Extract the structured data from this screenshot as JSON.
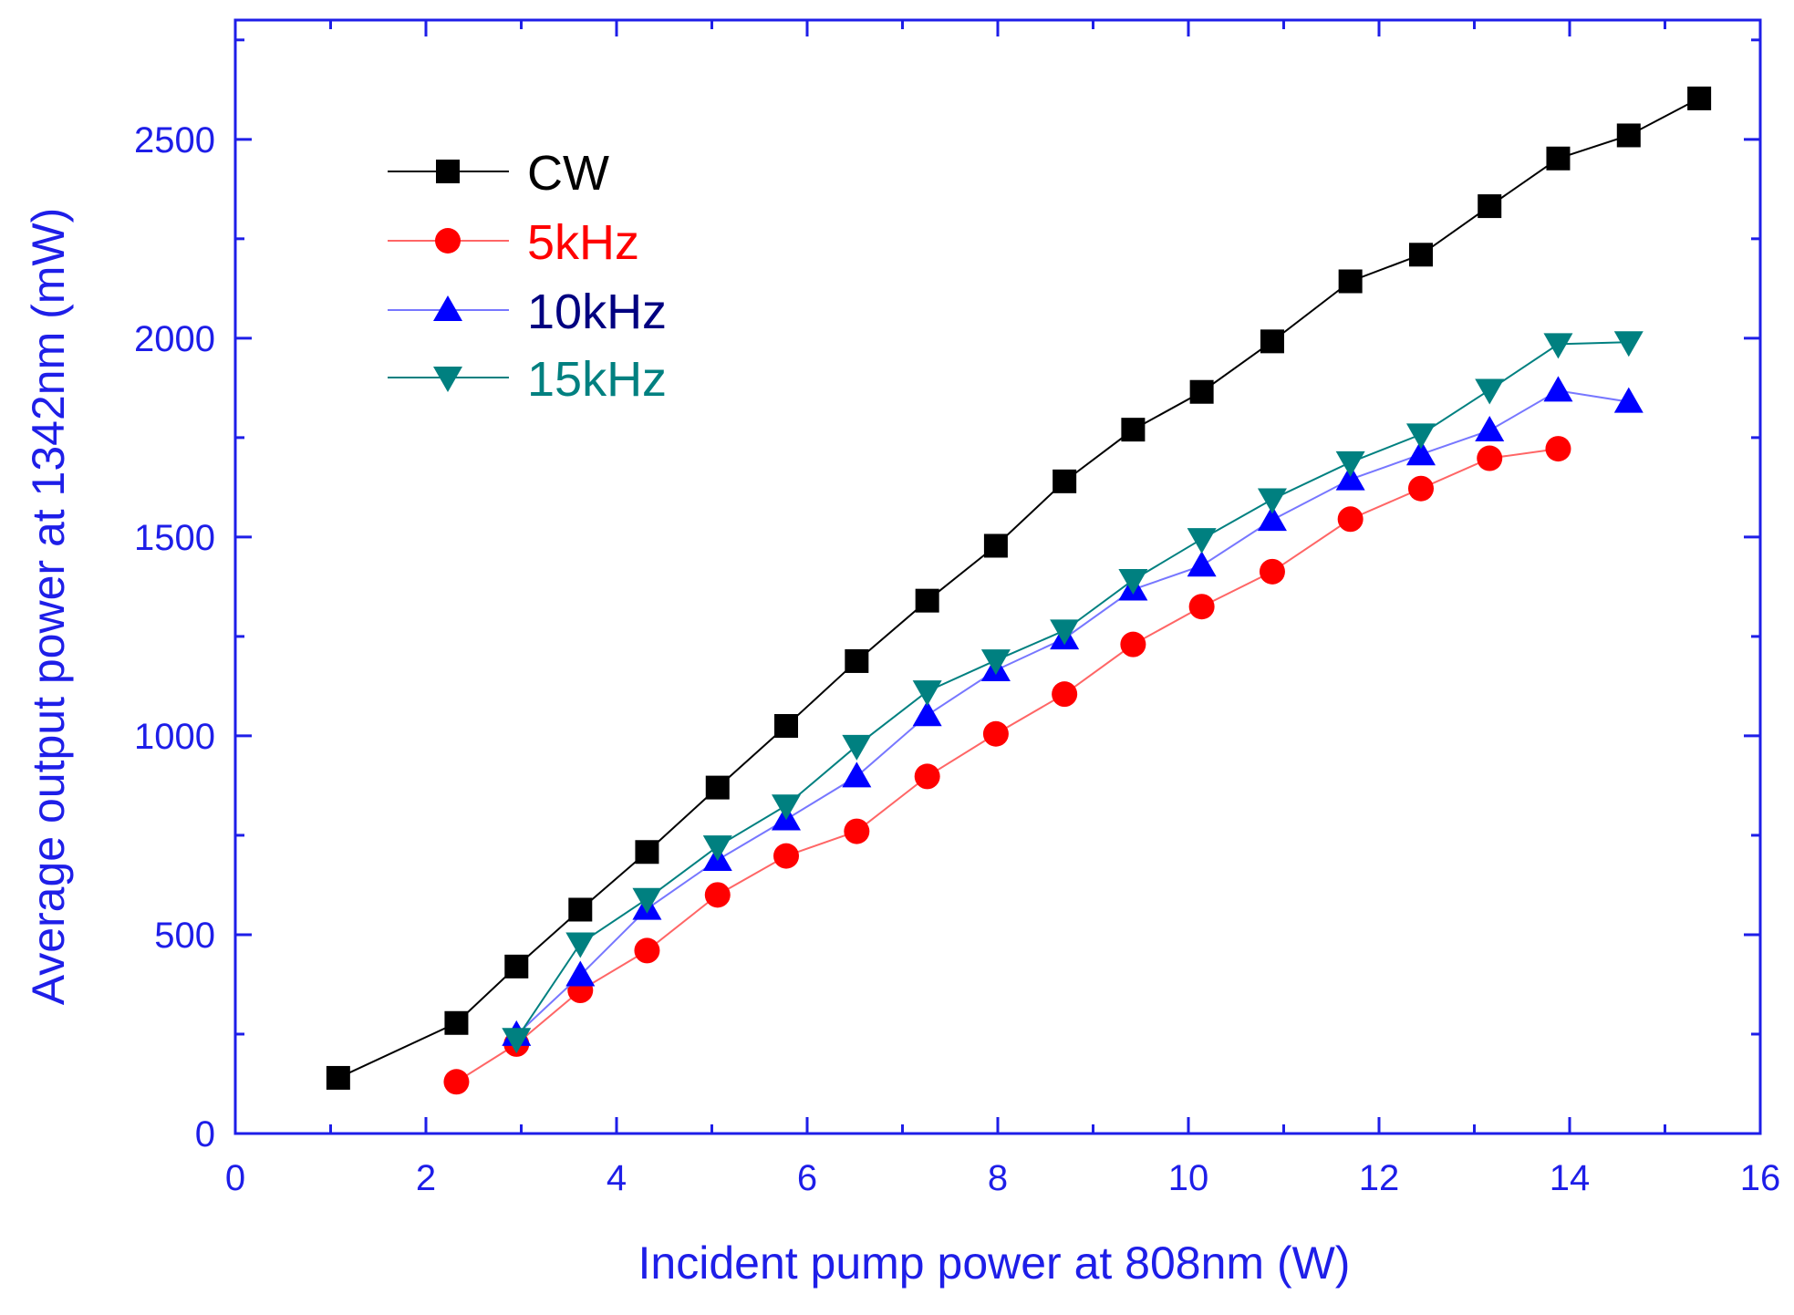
{
  "chart_data": {
    "type": "line",
    "title": "",
    "xlabel": "Incident pump power at 808nm (W)",
    "ylabel": "Average output power at 1342nm (mW)",
    "xlim": [
      0,
      16
    ],
    "ylim": [
      0,
      2800
    ],
    "xticks": [
      0,
      2,
      4,
      6,
      8,
      10,
      12,
      14,
      16
    ],
    "yticks": [
      0,
      500,
      1000,
      1500,
      2000,
      2500
    ],
    "grid": false,
    "legend_position": "top-left",
    "axis_color": "#1e1ee8",
    "series": [
      {
        "name": "CW",
        "marker": "square",
        "color": "#000000",
        "line_color": "#000000",
        "label_color": "#000000",
        "x": [
          1.08,
          2.32,
          2.95,
          3.62,
          4.32,
          5.06,
          5.78,
          6.52,
          7.26,
          7.98,
          8.7,
          9.42,
          10.14,
          10.88,
          11.7,
          12.44,
          13.16,
          13.88,
          14.62,
          15.36
        ],
        "y": [
          140,
          278,
          420,
          563,
          708,
          870,
          1025,
          1188,
          1340,
          1478,
          1640,
          1770,
          1865,
          1992,
          2143,
          2210,
          2332,
          2452,
          2510,
          2603
        ]
      },
      {
        "name": "5kHz",
        "marker": "circle",
        "color": "#ff0000",
        "line_color": "#ff6666",
        "label_color": "#ff0000",
        "x": [
          2.32,
          2.95,
          3.62,
          4.32,
          5.06,
          5.78,
          6.52,
          7.26,
          7.98,
          8.7,
          9.42,
          10.14,
          10.88,
          11.7,
          12.44,
          13.16,
          13.88
        ],
        "y": [
          130,
          225,
          360,
          460,
          600,
          698,
          760,
          898,
          1005,
          1105,
          1230,
          1325,
          1413,
          1545,
          1622,
          1698,
          1722
        ]
      },
      {
        "name": "10kHz",
        "marker": "triangle-up",
        "color": "#0000ff",
        "line_color": "#7777ff",
        "label_color": "#000080",
        "x": [
          2.95,
          3.62,
          4.32,
          5.06,
          5.78,
          6.52,
          7.26,
          7.98,
          8.7,
          9.42,
          10.14,
          10.88,
          11.7,
          12.44,
          13.16,
          13.88,
          14.62
        ],
        "y": [
          248,
          398,
          565,
          688,
          790,
          898,
          1052,
          1165,
          1245,
          1368,
          1428,
          1543,
          1645,
          1708,
          1768,
          1868,
          1840
        ]
      },
      {
        "name": "15kHz",
        "marker": "triangle-down",
        "color": "#008080",
        "line_color": "#008080",
        "label_color": "#008080",
        "x": [
          2.95,
          3.62,
          4.32,
          5.06,
          5.78,
          6.52,
          7.26,
          7.98,
          8.7,
          9.42,
          10.14,
          10.88,
          11.7,
          12.44,
          13.16,
          13.88,
          14.62
        ],
        "y": [
          238,
          478,
          590,
          722,
          825,
          975,
          1112,
          1190,
          1265,
          1392,
          1495,
          1595,
          1688,
          1758,
          1870,
          1985,
          1990
        ]
      }
    ]
  }
}
